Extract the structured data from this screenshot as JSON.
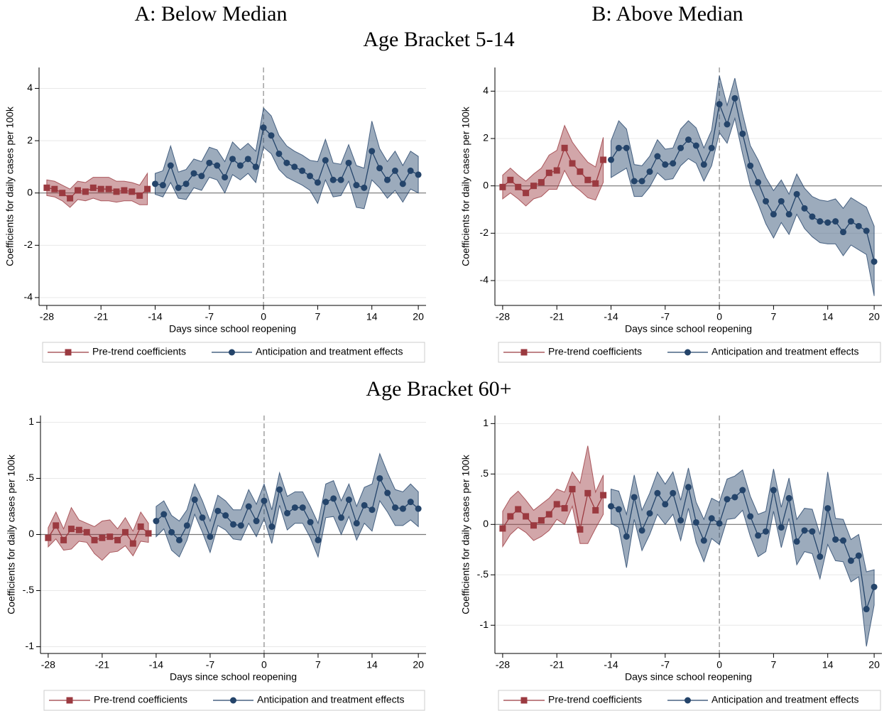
{
  "column_titles": [
    "A: Below Median",
    "B: Above Median"
  ],
  "row_titles": [
    "Age Bracket 5-14",
    "Age Bracket 60+"
  ],
  "chart_data": [
    {
      "type": "line",
      "x_label": "Days since school reopening",
      "y_label": "Coefficients for daily cases per 100k",
      "xlim": [
        -29,
        21
      ],
      "ylim": [
        -4.3,
        4.8
      ],
      "xticks": [
        -28,
        -21,
        -14,
        -7,
        0,
        7,
        14,
        20
      ],
      "yticks": [
        -4,
        -2,
        0,
        2,
        4
      ],
      "grid": true,
      "vline": 0,
      "hline": 0,
      "series": [
        {
          "name": "Pre-trend coefficients",
          "color": "#9b3a40",
          "marker": "square",
          "x": [
            -28,
            -27,
            -26,
            -25,
            -24,
            -23,
            -22,
            -21,
            -20,
            -19,
            -18,
            -17,
            -16,
            -15
          ],
          "values": [
            0.2,
            0.15,
            0,
            -0.2,
            0.1,
            0.05,
            0.2,
            0.15,
            0.15,
            0.05,
            0.1,
            0.05,
            -0.1,
            0.15
          ],
          "upper": [
            0.5,
            0.45,
            0.3,
            0.15,
            0.45,
            0.4,
            0.6,
            0.6,
            0.6,
            0.45,
            0.45,
            0.4,
            0.3,
            0.75
          ],
          "lower": [
            -0.1,
            -0.15,
            -0.3,
            -0.55,
            -0.25,
            -0.3,
            -0.2,
            -0.3,
            -0.3,
            -0.35,
            -0.3,
            -0.3,
            -0.45,
            -0.45
          ]
        },
        {
          "name": "Anticipation and treatment effects",
          "color": "#24446a",
          "marker": "circle",
          "x": [
            -14,
            -13,
            -12,
            -11,
            -10,
            -9,
            -8,
            -7,
            -6,
            -5,
            -4,
            -3,
            -2,
            -1,
            0,
            1,
            2,
            3,
            4,
            5,
            6,
            7,
            8,
            9,
            10,
            11,
            12,
            13,
            14,
            15,
            16,
            17,
            18,
            19,
            20
          ],
          "values": [
            0.35,
            0.3,
            1.05,
            0.2,
            0.35,
            0.75,
            0.65,
            1.15,
            1.05,
            0.6,
            1.3,
            1.05,
            1.3,
            1.0,
            2.5,
            2.2,
            1.5,
            1.15,
            1.0,
            0.85,
            0.65,
            0.4,
            1.25,
            0.5,
            0.5,
            1.15,
            0.3,
            0.2,
            1.6,
            0.95,
            0.5,
            0.85,
            0.35,
            0.85,
            0.7
          ],
          "upper": [
            0.75,
            0.85,
            1.8,
            0.8,
            0.9,
            1.3,
            1.2,
            1.75,
            1.65,
            1.2,
            1.95,
            1.65,
            1.9,
            1.6,
            3.25,
            2.95,
            2.2,
            1.8,
            1.6,
            1.45,
            1.25,
            1.2,
            2.05,
            1.15,
            1.1,
            1.85,
            1.05,
            0.95,
            2.75,
            1.7,
            1.2,
            1.6,
            1.05,
            1.6,
            1.4
          ],
          "lower": [
            -0.05,
            -0.15,
            0.4,
            -0.2,
            -0.25,
            0.2,
            0.1,
            0.6,
            0.5,
            0,
            0.7,
            0.5,
            0.75,
            0.4,
            1.75,
            1.5,
            0.9,
            0.6,
            0.45,
            0.3,
            0.1,
            -0.4,
            0.5,
            -0.15,
            -0.1,
            0.45,
            -0.55,
            -0.6,
            0.5,
            0.2,
            -0.2,
            0.1,
            -0.35,
            0.15,
            0
          ]
        }
      ]
    },
    {
      "type": "line",
      "x_label": "Days since school reopening",
      "y_label": "Coefficients for daily cases per 100k",
      "xlim": [
        -29,
        21
      ],
      "ylim": [
        -5.05,
        5
      ],
      "xticks": [
        -28,
        -21,
        -14,
        -7,
        0,
        7,
        14,
        20
      ],
      "yticks": [
        -4,
        -2,
        0,
        2,
        4
      ],
      "grid": true,
      "vline": 0,
      "hline": 0,
      "series": [
        {
          "name": "Pre-trend coefficients",
          "color": "#9b3a40",
          "marker": "square",
          "x": [
            -28,
            -27,
            -26,
            -25,
            -24,
            -23,
            -22,
            -21,
            -20,
            -19,
            -18,
            -17,
            -16,
            -15
          ],
          "values": [
            -0.05,
            0.25,
            -0.05,
            -0.3,
            0,
            0.15,
            0.55,
            0.65,
            1.6,
            0.95,
            0.6,
            0.25,
            0.1,
            1.1
          ],
          "upper": [
            0.45,
            0.75,
            0.45,
            0.2,
            0.5,
            0.75,
            1.3,
            1.5,
            2.55,
            1.85,
            1.4,
            1.0,
            0.8,
            2.05
          ],
          "lower": [
            -0.55,
            -0.3,
            -0.55,
            -0.85,
            -0.55,
            -0.45,
            -0.15,
            -0.15,
            0.65,
            0.05,
            -0.2,
            -0.5,
            -0.6,
            0.15
          ]
        },
        {
          "name": "Anticipation and treatment effects",
          "color": "#24446a",
          "marker": "circle",
          "x": [
            -14,
            -13,
            -12,
            -11,
            -10,
            -9,
            -8,
            -7,
            -6,
            -5,
            -4,
            -3,
            -2,
            -1,
            0,
            1,
            2,
            3,
            4,
            5,
            6,
            7,
            8,
            9,
            10,
            11,
            12,
            13,
            14,
            15,
            16,
            17,
            18,
            19,
            20
          ],
          "values": [
            1.1,
            1.6,
            1.6,
            0.2,
            0.2,
            0.6,
            1.25,
            0.9,
            0.95,
            1.6,
            1.95,
            1.7,
            0.9,
            1.6,
            3.45,
            2.6,
            3.7,
            2.2,
            0.85,
            0.15,
            -0.65,
            -1.2,
            -0.65,
            -1.2,
            -0.35,
            -0.95,
            -1.3,
            -1.5,
            -1.55,
            -1.5,
            -1.95,
            -1.5,
            -1.7,
            -1.9,
            -3.2
          ],
          "upper": [
            1.9,
            2.75,
            2.4,
            0.9,
            0.85,
            1.25,
            1.95,
            1.55,
            1.6,
            2.4,
            2.75,
            2.45,
            1.6,
            2.35,
            4.65,
            3.4,
            4.55,
            3.05,
            1.7,
            1.1,
            0.35,
            -0.2,
            0.25,
            -0.35,
            0.5,
            -0.1,
            -0.45,
            -0.6,
            -0.65,
            -0.55,
            -0.95,
            -0.5,
            -0.7,
            -0.9,
            -1.7
          ],
          "lower": [
            0.35,
            0.55,
            0.75,
            -0.45,
            -0.45,
            -0.05,
            0.55,
            0.25,
            0.3,
            0.85,
            1.15,
            0.95,
            0.2,
            0.85,
            2.25,
            1.8,
            2.85,
            1.35,
            0,
            -0.75,
            -1.6,
            -2.2,
            -1.55,
            -2.05,
            -1.2,
            -1.8,
            -2.15,
            -2.4,
            -2.45,
            -2.45,
            -2.95,
            -2.5,
            -2.7,
            -2.9,
            -4.65
          ]
        }
      ]
    },
    {
      "type": "line",
      "x_label": "Days since school reopening",
      "y_label": "Coefficients for daily cases per 100k",
      "xlim": [
        -29,
        21
      ],
      "ylim": [
        -1.06,
        1.06
      ],
      "xticks": [
        -28,
        -21,
        -14,
        -7,
        0,
        7,
        14,
        20
      ],
      "yticks": [
        -1,
        {
          "value": -0.5,
          "label": "-.5"
        },
        0,
        {
          "value": 0.5,
          "label": ".5"
        },
        1
      ],
      "grid": true,
      "vline": 0,
      "hline": 0,
      "series": [
        {
          "name": "Pre-trend coefficients",
          "color": "#9b3a40",
          "marker": "square",
          "x": [
            -28,
            -27,
            -26,
            -25,
            -24,
            -23,
            -22,
            -21,
            -20,
            -19,
            -18,
            -17,
            -16,
            -15
          ],
          "values": [
            -0.03,
            0.08,
            -0.05,
            0.05,
            0.04,
            0.02,
            -0.05,
            -0.03,
            -0.02,
            -0.05,
            0.02,
            -0.08,
            0.07,
            0.01
          ],
          "upper": [
            0.06,
            0.2,
            0.05,
            0.24,
            0.13,
            0.1,
            0.07,
            0.12,
            0.13,
            0.05,
            0.15,
            0.03,
            0.2,
            0.1
          ],
          "lower": [
            -0.11,
            -0.04,
            -0.14,
            -0.13,
            -0.06,
            -0.07,
            -0.17,
            -0.23,
            -0.16,
            -0.15,
            -0.1,
            -0.19,
            -0.06,
            -0.07
          ]
        },
        {
          "name": "Anticipation and treatment effects",
          "color": "#24446a",
          "marker": "circle",
          "x": [
            -14,
            -13,
            -12,
            -11,
            -10,
            -9,
            -8,
            -7,
            -6,
            -5,
            -4,
            -3,
            -2,
            -1,
            0,
            1,
            2,
            3,
            4,
            5,
            6,
            7,
            8,
            9,
            10,
            11,
            12,
            13,
            14,
            15,
            16,
            17,
            18,
            19,
            20
          ],
          "values": [
            0.12,
            0.18,
            0.02,
            -0.05,
            0.08,
            0.31,
            0.15,
            -0.02,
            0.21,
            0.17,
            0.09,
            0.08,
            0.25,
            0.12,
            0.3,
            0.07,
            0.4,
            0.19,
            0.24,
            0.24,
            0.11,
            -0.05,
            0.29,
            0.32,
            0.15,
            0.31,
            0.1,
            0.26,
            0.22,
            0.5,
            0.37,
            0.24,
            0.23,
            0.29,
            0.23
          ],
          "upper": [
            0.25,
            0.3,
            0.17,
            0.12,
            0.22,
            0.45,
            0.3,
            0.12,
            0.35,
            0.3,
            0.22,
            0.22,
            0.4,
            0.27,
            0.45,
            0.22,
            0.55,
            0.34,
            0.38,
            0.38,
            0.25,
            0.1,
            0.45,
            0.48,
            0.3,
            0.45,
            0.25,
            0.42,
            0.45,
            0.72,
            0.55,
            0.4,
            0.38,
            0.45,
            0.38
          ],
          "lower": [
            -0.02,
            0.05,
            -0.14,
            -0.2,
            -0.05,
            0.18,
            0.02,
            -0.16,
            0.08,
            0.04,
            -0.04,
            -0.05,
            0.1,
            -0.02,
            0.14,
            -0.08,
            0.26,
            0.04,
            0.1,
            0.1,
            -0.03,
            -0.2,
            0.15,
            0.16,
            0,
            0.16,
            -0.05,
            0.1,
            0.03,
            0.3,
            0.2,
            0.08,
            0.08,
            0.13,
            0.07
          ]
        }
      ]
    },
    {
      "type": "line",
      "x_label": "Days since school reopening",
      "y_label": "Coefficients for daily cases per 100k",
      "xlim": [
        -29,
        21
      ],
      "ylim": [
        -1.28,
        1.08
      ],
      "xticks": [
        -28,
        -21,
        -14,
        -7,
        0,
        7,
        14,
        20
      ],
      "yticks": [
        -1,
        {
          "value": -0.5,
          "label": "-.5"
        },
        0,
        {
          "value": 0.5,
          "label": ".5"
        },
        1
      ],
      "grid": true,
      "vline": 0,
      "hline": 0,
      "series": [
        {
          "name": "Pre-trend coefficients",
          "color": "#9b3a40",
          "marker": "square",
          "x": [
            -28,
            -27,
            -26,
            -25,
            -24,
            -23,
            -22,
            -21,
            -20,
            -19,
            -18,
            -17,
            -16,
            -15
          ],
          "values": [
            -0.04,
            0.08,
            0.15,
            0.08,
            -0.01,
            0.04,
            0.1,
            0.2,
            0.16,
            0.35,
            -0.05,
            0.31,
            0.14,
            0.29
          ],
          "upper": [
            0.13,
            0.26,
            0.33,
            0.24,
            0.14,
            0.2,
            0.26,
            0.35,
            0.32,
            0.52,
            0.41,
            0.78,
            0.32,
            0.49
          ],
          "lower": [
            -0.22,
            -0.1,
            -0.03,
            -0.08,
            -0.16,
            -0.12,
            -0.06,
            0.05,
            0,
            0.18,
            -0.19,
            -0.19,
            -0.04,
            0.1
          ]
        },
        {
          "name": "Anticipation and treatment effects",
          "color": "#24446a",
          "marker": "circle",
          "x": [
            -14,
            -13,
            -12,
            -11,
            -10,
            -9,
            -8,
            -7,
            -6,
            -5,
            -4,
            -3,
            -2,
            -1,
            0,
            1,
            2,
            3,
            4,
            5,
            6,
            7,
            8,
            9,
            10,
            11,
            12,
            13,
            14,
            15,
            16,
            17,
            18,
            19,
            20
          ],
          "values": [
            0.18,
            0.15,
            -0.12,
            0.27,
            -0.06,
            0.11,
            0.31,
            0.2,
            0.31,
            0.04,
            0.37,
            0.02,
            -0.16,
            0.06,
            0.01,
            0.25,
            0.27,
            0.34,
            0.08,
            -0.11,
            -0.07,
            0.34,
            -0.03,
            0.26,
            -0.17,
            -0.06,
            -0.07,
            -0.32,
            0.16,
            -0.15,
            -0.16,
            -0.36,
            -0.31,
            -0.84,
            -0.62
          ],
          "upper": [
            0.35,
            0.33,
            0.1,
            0.49,
            0.14,
            0.31,
            0.52,
            0.4,
            0.52,
            0.24,
            0.56,
            0.22,
            0.05,
            0.26,
            0.22,
            0.45,
            0.48,
            0.54,
            0.28,
            0.1,
            0.13,
            0.55,
            0.17,
            0.46,
            0.05,
            0.16,
            0.15,
            -0.1,
            0.52,
            0.06,
            0.05,
            -0.15,
            -0.1,
            -0.47,
            -0.45
          ],
          "lower": [
            0.01,
            -0.03,
            -0.43,
            0.05,
            -0.26,
            -0.1,
            0.1,
            0,
            0.1,
            -0.16,
            0.16,
            -0.18,
            -0.37,
            -0.14,
            -0.2,
            0.05,
            0.06,
            0.14,
            -0.12,
            -0.32,
            -0.27,
            0.13,
            -0.23,
            0.06,
            -0.4,
            -0.27,
            -0.29,
            -0.54,
            -0.2,
            -0.36,
            -0.37,
            -0.57,
            -0.52,
            -1.21,
            -0.8
          ]
        }
      ]
    }
  ]
}
